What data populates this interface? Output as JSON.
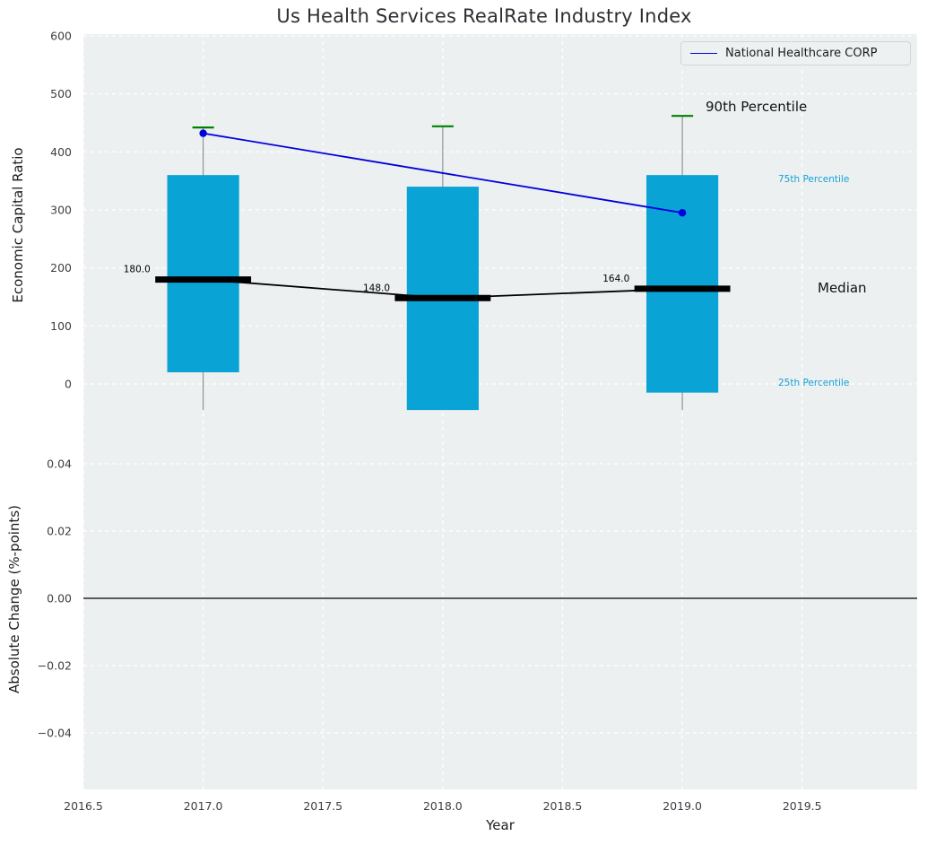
{
  "title": "Us Health Services RealRate Industry Index",
  "legend": {
    "label": "National Healthcare CORP"
  },
  "annotations": {
    "p90": "90th Percentile",
    "p75": "75th Percentile",
    "median": "Median",
    "p25": "25th Percentile"
  },
  "axes": {
    "x": {
      "label": "Year",
      "lim": [
        2016.5,
        2019.98
      ],
      "ticks": [
        {
          "v": 2016.5,
          "label": "2016.5"
        },
        {
          "v": 2017.0,
          "label": "2017.0"
        },
        {
          "v": 2017.5,
          "label": "2017.5"
        },
        {
          "v": 2018.0,
          "label": "2018.0"
        },
        {
          "v": 2018.5,
          "label": "2018.5"
        },
        {
          "v": 2019.0,
          "label": "2019.0"
        },
        {
          "v": 2019.5,
          "label": "2019.5"
        }
      ]
    },
    "top_y": {
      "label": "Economic Capital Ratio",
      "lim": [
        -49.5,
        603
      ],
      "ticks": [
        {
          "v": 0,
          "label": "0"
        },
        {
          "v": 100,
          "label": "100"
        },
        {
          "v": 200,
          "label": "200"
        },
        {
          "v": 300,
          "label": "300"
        },
        {
          "v": 400,
          "label": "400"
        },
        {
          "v": 500,
          "label": "500"
        },
        {
          "v": 600,
          "label": "600"
        }
      ]
    },
    "bottom_y": {
      "label": "Absolute Change (%-points)",
      "lim": [
        -0.0568,
        0.0552
      ],
      "ticks": [
        {
          "v": 0.04,
          "label": "0.04"
        },
        {
          "v": 0.02,
          "label": "0.02"
        },
        {
          "v": 0.0,
          "label": "0.00"
        },
        {
          "v": -0.02,
          "label": "−0.02"
        },
        {
          "v": -0.04,
          "label": "−0.04"
        }
      ]
    }
  },
  "chart_data": {
    "type": "boxplot+line",
    "title": "Us Health Services RealRate Industry Index",
    "xlabel": "Year",
    "ylabel_top": "Economic Capital Ratio",
    "ylabel_bottom": "Absolute Change (%-points)",
    "years": [
      2017,
      2018,
      2019
    ],
    "boxes": [
      {
        "year": 2017,
        "whisker_low": -45,
        "q25": 20,
        "median": 180,
        "q75": 360,
        "p90": 442,
        "median_label": "180.0"
      },
      {
        "year": 2018,
        "whisker_low": -45,
        "q25": -45,
        "median": 148,
        "q75": 340,
        "p90": 444,
        "median_label": "148.0"
      },
      {
        "year": 2019,
        "whisker_low": -45,
        "q25": -15,
        "median": 164,
        "q75": 360,
        "p90": 462,
        "median_label": "164.0"
      }
    ],
    "median_series": {
      "x": [
        2017,
        2018,
        2019
      ],
      "y": [
        180,
        148,
        164
      ]
    },
    "company_series": {
      "name": "National Healthcare CORP",
      "x": [
        2017,
        2019
      ],
      "y": [
        432,
        295
      ]
    },
    "bottom_zero_line": 0.0,
    "geometry": {
      "box_half_width": 0.15,
      "median_half_width": 0.2,
      "cap_half_width": 0.045
    },
    "colors": {
      "panel_bg": "#edf0f1",
      "grid": "#ffffff",
      "box": "#0aa3d6",
      "median": "#000000",
      "p90_cap": "#008000",
      "whisker": "#8a8a8a",
      "company": "#0000dd",
      "tick_text": "#3b3f44",
      "zero_line": "#000000"
    }
  }
}
